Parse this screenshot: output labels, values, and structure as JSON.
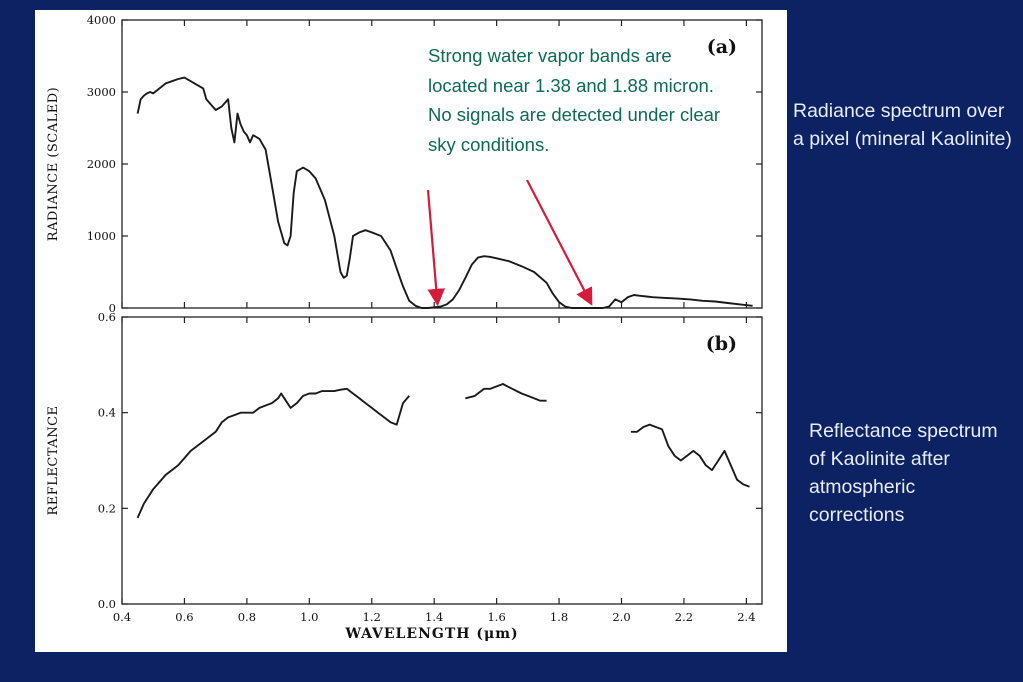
{
  "chart_data": [
    {
      "type": "line",
      "panel_label": "(a)",
      "ylabel": "RADIANCE (SCALED)",
      "xlim": [
        0.4,
        2.45
      ],
      "ylim": [
        0,
        4000
      ],
      "x_ticks": [
        0.4,
        0.6,
        0.8,
        1.0,
        1.2,
        1.4,
        1.6,
        1.8,
        2.0,
        2.2,
        2.4
      ],
      "y_ticks": [
        0,
        1000,
        2000,
        3000,
        4000
      ],
      "y_tick_labels": [
        "0",
        "1000",
        "2000",
        "3000",
        "4000"
      ],
      "grid": false,
      "series": [
        {
          "x": [
            0.45,
            0.46,
            0.47,
            0.48,
            0.49,
            0.5,
            0.52,
            0.54,
            0.56,
            0.58,
            0.6,
            0.62,
            0.64,
            0.66,
            0.67,
            0.68,
            0.69,
            0.7,
            0.72,
            0.74,
            0.75,
            0.76,
            0.77,
            0.78,
            0.79,
            0.8,
            0.81,
            0.82,
            0.84,
            0.86,
            0.88,
            0.9,
            0.92,
            0.93,
            0.94,
            0.95,
            0.96,
            0.98,
            1.0,
            1.02,
            1.05,
            1.08,
            1.1,
            1.11,
            1.12,
            1.13,
            1.14,
            1.16,
            1.18,
            1.2,
            1.23,
            1.26,
            1.28,
            1.3,
            1.32,
            1.34,
            1.36,
            1.38,
            1.4,
            1.42,
            1.44,
            1.46,
            1.48,
            1.5,
            1.52,
            1.54,
            1.56,
            1.58,
            1.6,
            1.64,
            1.68,
            1.72,
            1.76,
            1.78,
            1.8,
            1.82,
            1.84,
            1.86,
            1.88,
            1.9,
            1.92,
            1.94,
            1.96,
            1.98,
            2.0,
            2.02,
            2.04,
            2.06,
            2.08,
            2.1,
            2.14,
            2.18,
            2.22,
            2.26,
            2.3,
            2.34,
            2.38,
            2.42
          ],
          "y": [
            2700,
            2900,
            2950,
            2980,
            3000,
            2980,
            3050,
            3120,
            3150,
            3180,
            3200,
            3150,
            3100,
            3050,
            2900,
            2850,
            2800,
            2750,
            2800,
            2900,
            2500,
            2300,
            2700,
            2550,
            2450,
            2400,
            2300,
            2400,
            2350,
            2200,
            1700,
            1200,
            900,
            870,
            1000,
            1600,
            1900,
            1950,
            1900,
            1800,
            1500,
            1000,
            500,
            420,
            450,
            700,
            1000,
            1050,
            1080,
            1050,
            1000,
            800,
            550,
            300,
            100,
            30,
            0,
            0,
            10,
            20,
            50,
            120,
            250,
            420,
            600,
            700,
            720,
            710,
            690,
            650,
            580,
            500,
            350,
            200,
            80,
            20,
            0,
            0,
            0,
            0,
            0,
            0,
            20,
            120,
            80,
            150,
            180,
            170,
            160,
            150,
            140,
            130,
            120,
            100,
            90,
            70,
            50,
            30
          ]
        }
      ],
      "annotation": "Strong water vapor bands are located near 1.38 and 1.88 micron. No signals are detected under clear sky conditions.",
      "arrows_at_x": [
        1.41,
        1.9
      ]
    },
    {
      "type": "line",
      "panel_label": "(b)",
      "xlabel": "WAVELENGTH (μm)",
      "ylabel": "REFLECTANCE",
      "xlim": [
        0.4,
        2.45
      ],
      "ylim": [
        0.0,
        0.6
      ],
      "x_ticks": [
        0.4,
        0.6,
        0.8,
        1.0,
        1.2,
        1.4,
        1.6,
        1.8,
        2.0,
        2.2,
        2.4
      ],
      "x_tick_labels": [
        "0.4",
        "0.6",
        "0.8",
        "1.0",
        "1.2",
        "1.4",
        "1.6",
        "1.8",
        "2.0",
        "2.2",
        "2.4"
      ],
      "y_ticks": [
        0.0,
        0.2,
        0.4,
        0.6
      ],
      "y_tick_labels": [
        "0.0",
        "0.2",
        "0.4",
        "0.6"
      ],
      "grid": false,
      "series": [
        {
          "segments": [
            {
              "x": [
                0.45,
                0.47,
                0.5,
                0.54,
                0.58,
                0.62,
                0.66,
                0.7,
                0.72,
                0.74,
                0.76,
                0.78,
                0.8,
                0.82,
                0.84,
                0.86,
                0.88,
                0.9,
                0.91,
                0.92,
                0.94,
                0.96,
                0.98,
                1.0,
                1.02,
                1.04,
                1.06,
                1.08,
                1.1,
                1.12,
                1.14,
                1.16,
                1.18,
                1.2,
                1.22,
                1.24,
                1.26,
                1.28,
                1.3,
                1.32
              ],
              "y": [
                0.18,
                0.21,
                0.24,
                0.27,
                0.29,
                0.32,
                0.34,
                0.36,
                0.38,
                0.39,
                0.395,
                0.4,
                0.4,
                0.4,
                0.41,
                0.415,
                0.42,
                0.43,
                0.44,
                0.43,
                0.41,
                0.42,
                0.435,
                0.44,
                0.44,
                0.445,
                0.445,
                0.445,
                0.448,
                0.45,
                0.44,
                0.43,
                0.42,
                0.41,
                0.4,
                0.39,
                0.38,
                0.375,
                0.42,
                0.435
              ]
            },
            {
              "x": [
                1.5,
                1.53,
                1.56,
                1.58,
                1.6,
                1.62,
                1.65,
                1.68,
                1.7,
                1.72,
                1.74,
                1.76
              ],
              "y": [
                0.43,
                0.435,
                0.45,
                0.45,
                0.455,
                0.46,
                0.45,
                0.44,
                0.435,
                0.43,
                0.425,
                0.425
              ]
            },
            {
              "x": [
                2.03,
                2.05,
                2.07,
                2.09,
                2.11,
                2.13,
                2.15,
                2.17,
                2.19,
                2.21,
                2.23,
                2.25,
                2.27,
                2.29,
                2.31,
                2.33,
                2.35,
                2.37,
                2.39,
                2.41
              ],
              "y": [
                0.36,
                0.36,
                0.37,
                0.375,
                0.37,
                0.365,
                0.33,
                0.31,
                0.3,
                0.31,
                0.32,
                0.31,
                0.29,
                0.28,
                0.3,
                0.32,
                0.29,
                0.26,
                0.25,
                0.245
              ]
            }
          ]
        }
      ]
    }
  ],
  "captions": {
    "panel_a": "Radiance spectrum over a pixel (mineral Kaolinite)",
    "panel_b": "Reflectance spectrum of Kaolinite after atmospheric corrections"
  },
  "colors": {
    "background": "#0c2263",
    "annotation_text": "#0c6a55",
    "arrow": "#d61a3c",
    "caption_text": "#e8ecf6",
    "plot_line": "#1a1a1a"
  }
}
